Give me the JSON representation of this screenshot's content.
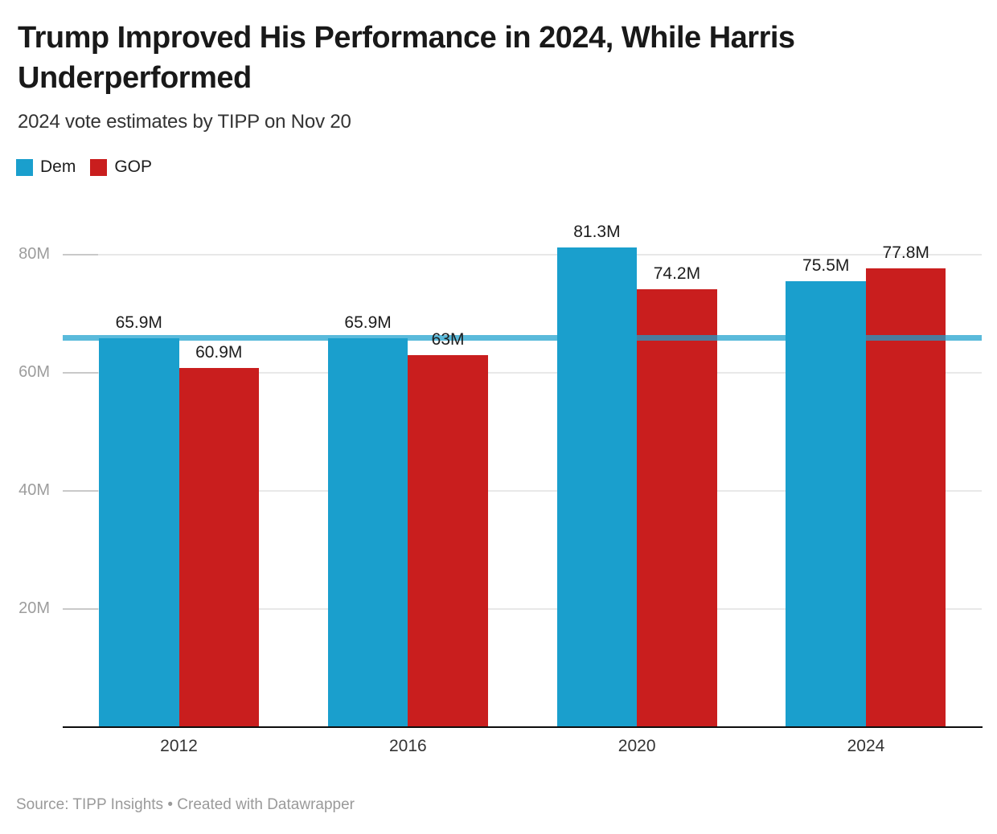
{
  "header": {
    "title_lines": [
      "Trump Improved His Performance in 2024, While Harris",
      "Underperformed"
    ],
    "subtitle": "2024 vote estimates by TIPP on Nov 20"
  },
  "legend": [
    {
      "label": "Dem",
      "color": "#1a9fcd"
    },
    {
      "label": "GOP",
      "color": "#c91e1e"
    }
  ],
  "chart_data": {
    "type": "bar",
    "title": "Trump Improved His Performance in 2024, While Harris Underperformed",
    "subtitle": "2024 vote estimates by TIPP on Nov 20",
    "categories": [
      "2012",
      "2016",
      "2020",
      "2024"
    ],
    "series": [
      {
        "name": "Dem",
        "color": "#1a9fcd",
        "values": [
          65.9,
          65.9,
          81.3,
          75.5
        ],
        "labels": [
          "65.9M",
          "65.9M",
          "81.3M",
          "75.5M"
        ]
      },
      {
        "name": "GOP",
        "color": "#c91e1e",
        "values": [
          60.9,
          63,
          74.2,
          77.8
        ],
        "labels": [
          "60.9M",
          "63M",
          "74.2M",
          "77.8M"
        ]
      }
    ],
    "y_ticks": [
      {
        "value": 20,
        "label": "20M"
      },
      {
        "value": 40,
        "label": "40M"
      },
      {
        "value": 60,
        "label": "60M"
      },
      {
        "value": 80,
        "label": "80M"
      }
    ],
    "ylim": [
      0,
      88
    ],
    "xlabel": "",
    "ylabel": "",
    "grid": "horizontal",
    "legend_position": "top-left",
    "reference_line": {
      "value": 65.9,
      "color": "#1a9fcd",
      "opacity": 0.72
    }
  },
  "footer": {
    "source": "Source: TIPP Insights • Created with Datawrapper"
  }
}
